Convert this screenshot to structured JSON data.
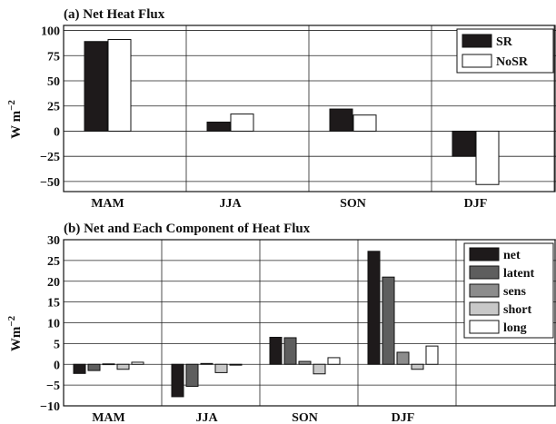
{
  "chart_data": [
    {
      "type": "bar",
      "title": "(a) Net Heat Flux",
      "ylabel": "W m",
      "ylabel_exponent": "−2",
      "categories": [
        "MAM",
        "JJA",
        "SON",
        "DJF"
      ],
      "ylim": [
        -60,
        105
      ],
      "yticks": [
        -50,
        -25,
        0,
        25,
        50,
        75,
        100
      ],
      "ytick_labels": [
        "−50",
        "−25",
        "0",
        "25",
        "50",
        "75",
        "100"
      ],
      "grid": true,
      "legend_position": "top-right",
      "series": [
        {
          "name": "SR",
          "color": "#1e1a1b",
          "values": [
            89,
            9,
            22,
            -25
          ]
        },
        {
          "name": "NoSR",
          "color": "#ffffff",
          "values": [
            91,
            17,
            16,
            -53
          ]
        }
      ]
    },
    {
      "type": "bar",
      "title": "(b) Net and Each Component of Heat Flux",
      "ylabel": "Wm",
      "ylabel_exponent": "−2",
      "categories": [
        "MAM",
        "JJA",
        "SON",
        "DJF"
      ],
      "ylim": [
        -10,
        30
      ],
      "yticks": [
        -10,
        -5,
        0,
        5,
        10,
        15,
        20,
        25,
        30
      ],
      "ytick_labels": [
        "−10",
        "−5",
        "0",
        "5",
        "10",
        "15",
        "20",
        "25",
        "30"
      ],
      "grid": true,
      "legend_position": "top-right",
      "series": [
        {
          "name": "net",
          "color": "#1e1a1b",
          "values": [
            -2.2,
            -7.8,
            6.5,
            27.2
          ]
        },
        {
          "name": "latent",
          "color": "#5e5e5e",
          "values": [
            -1.5,
            -5.3,
            6.4,
            21.0
          ]
        },
        {
          "name": "sens",
          "color": "#8c8c8c",
          "values": [
            0.1,
            0.2,
            0.7,
            2.9
          ]
        },
        {
          "name": "short",
          "color": "#c8c8c8",
          "values": [
            -1.2,
            -2.0,
            -2.3,
            -1.2
          ]
        },
        {
          "name": "long",
          "color": "#ffffff",
          "values": [
            0.5,
            -0.2,
            1.6,
            4.4
          ]
        }
      ]
    }
  ]
}
